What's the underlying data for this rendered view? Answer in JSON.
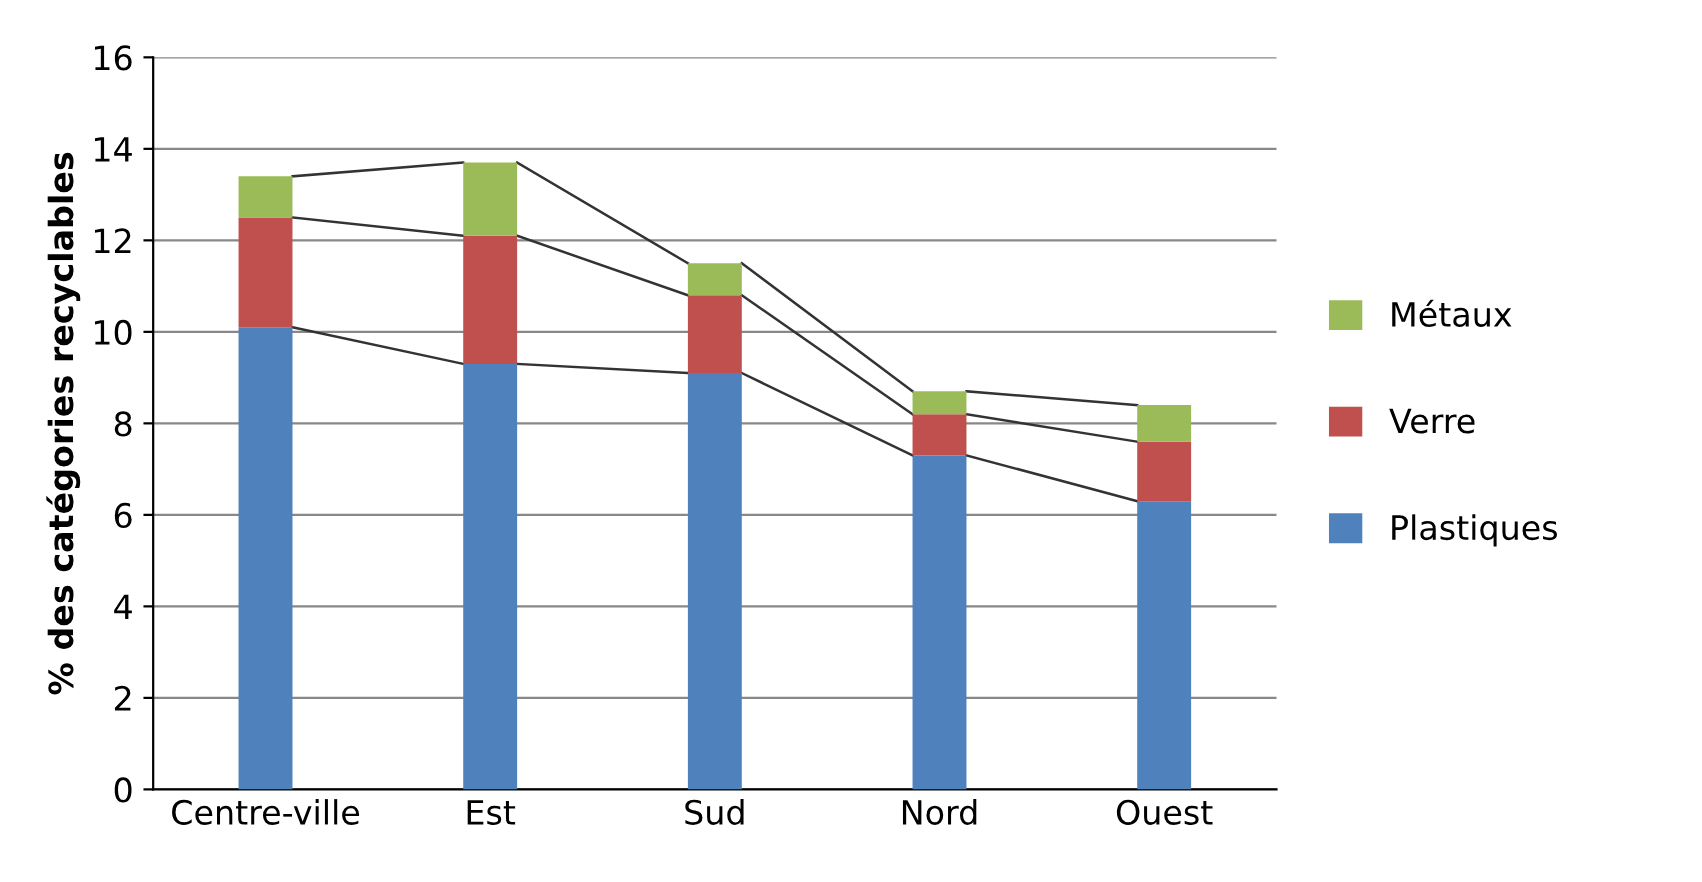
{
  "chart_data": {
    "type": "bar",
    "stacked": true,
    "ylabel": "% des catégories recyclables",
    "categories": [
      "Centre-ville",
      "Est",
      "Sud",
      "Nord",
      "Ouest"
    ],
    "series": [
      {
        "name": "Plastiques",
        "color": "#4f81bd",
        "values": [
          10.1,
          9.3,
          9.1,
          7.3,
          6.3
        ]
      },
      {
        "name": "Verre",
        "color": "#c0504d",
        "values": [
          2.4,
          2.8,
          1.7,
          0.9,
          1.3
        ]
      },
      {
        "name": "Métaux",
        "color": "#9bbb59",
        "values": [
          0.9,
          1.6,
          0.7,
          0.5,
          0.8
        ]
      }
    ],
    "ylim": [
      0,
      16
    ],
    "yticks": [
      0,
      2,
      4,
      6,
      8,
      10,
      12,
      14,
      16
    ],
    "grid": "y",
    "legend": "right"
  }
}
